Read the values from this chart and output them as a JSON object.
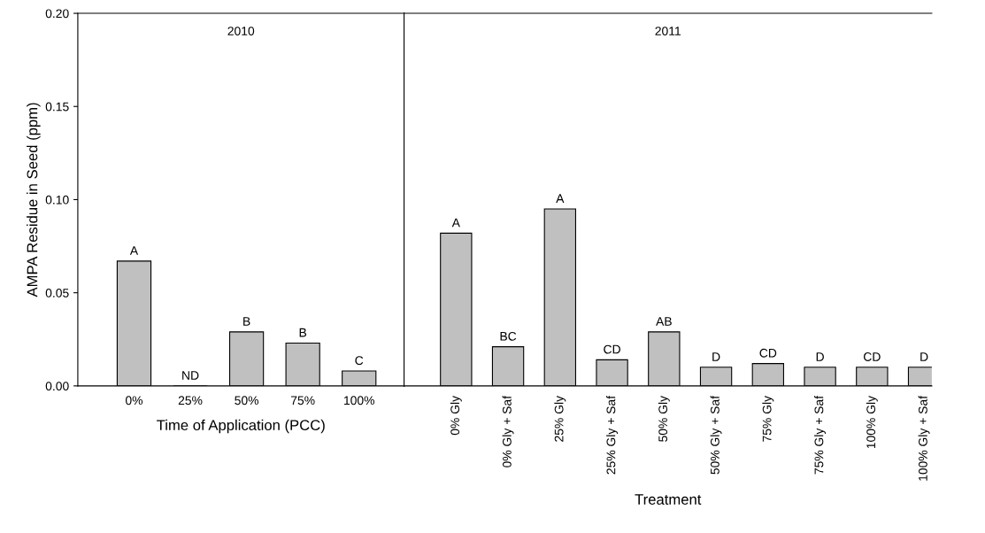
{
  "chart_data": [
    {
      "type": "bar",
      "annotations": [
        "2010"
      ],
      "ylabel": "AMPA Residue in Seed (ppm)",
      "xlabel": "Time of Application (PCC)",
      "categories": [
        "0%",
        "25%",
        "50%",
        "75%",
        "100%"
      ],
      "ylim": [
        0,
        0.2
      ],
      "yticks": [
        {
          "value": 0,
          "label": "0.00"
        },
        {
          "value": 0.05,
          "label": "0.05"
        },
        {
          "value": 0.1,
          "label": "0.10"
        },
        {
          "value": 0.15,
          "label": "0.15"
        },
        {
          "value": 0.2,
          "label": "0.20"
        }
      ],
      "series": [
        {
          "color": "#c0c0c0",
          "values": [
            0.067,
            0,
            0.029,
            0.023,
            0.008
          ],
          "value_labels": [
            "A",
            "ND",
            "B",
            "B",
            "C"
          ]
        }
      ],
      "grid": false,
      "legend": false
    },
    {
      "type": "bar",
      "annotations": [
        "2011"
      ],
      "xlabel": "Treatment",
      "categories": [
        "0% Gly",
        "0% Gly + Saf",
        "25% Gly",
        "25% Gly + Saf",
        "50% Gly",
        "50% Gly + Saf",
        "75% Gly",
        "75% Gly + Saf",
        "100% Gly",
        "100% Gly + Saf"
      ],
      "ylim": [
        0,
        0.2
      ],
      "tick_labels": "x",
      "series": [
        {
          "color": "#c0c0c0",
          "values": [
            0.082,
            0.021,
            0.095,
            0.014,
            0.029,
            0.01,
            0.012,
            0.01,
            0.01,
            0.01
          ],
          "value_labels": [
            "A",
            "BC",
            "A",
            "CD",
            "AB",
            "D",
            "CD",
            "D",
            "CD",
            "D"
          ]
        }
      ],
      "grid": false,
      "legend": false
    }
  ]
}
